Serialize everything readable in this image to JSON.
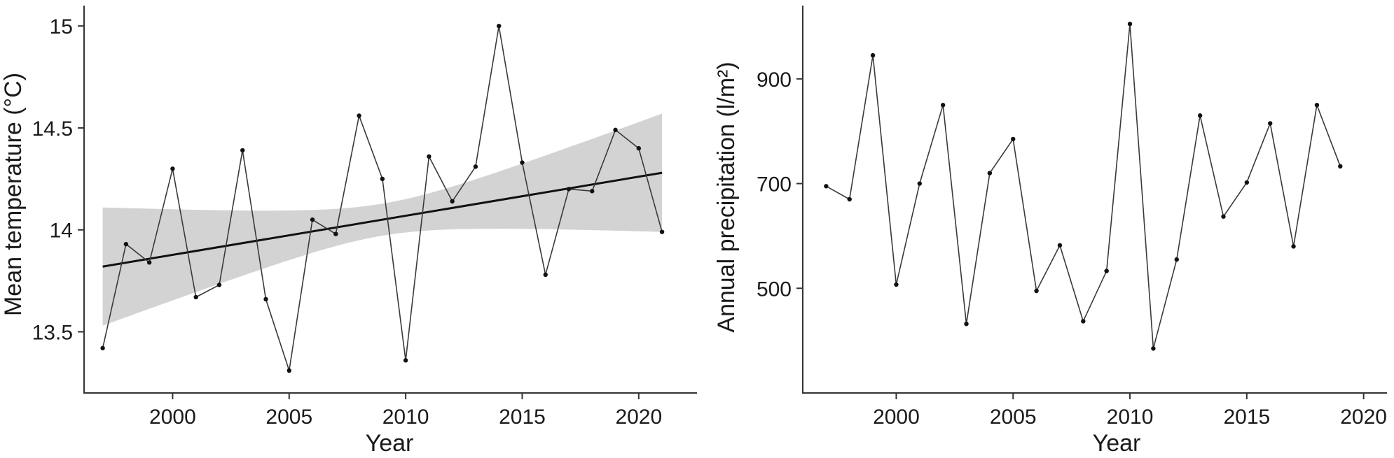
{
  "chart_data": [
    {
      "type": "line",
      "xlabel": "Year",
      "ylabel": "Mean temperature (°C)",
      "xlim": [
        1996.2,
        2022.5
      ],
      "ylim": [
        13.2,
        15.1
      ],
      "xticks": [
        2000,
        2005,
        2010,
        2015,
        2020
      ],
      "yticks": [
        13.5,
        14,
        14.5,
        15
      ],
      "ytick_labels": [
        "13.5",
        "14",
        "14.5",
        "15"
      ],
      "series": [
        {
          "x": [
            1997,
            1998,
            1999,
            2000,
            2001,
            2002,
            2003,
            2004,
            2005,
            2006,
            2007,
            2008,
            2009,
            2010,
            2011,
            2012,
            2013,
            2014,
            2015,
            2016,
            2017,
            2018,
            2019,
            2020,
            2021
          ],
          "y": [
            13.42,
            13.93,
            13.84,
            14.3,
            13.67,
            13.73,
            14.39,
            13.66,
            13.31,
            14.05,
            13.98,
            14.56,
            14.25,
            13.36,
            14.36,
            14.14,
            14.31,
            15.0,
            14.33,
            13.78,
            14.2,
            14.19,
            14.49,
            14.4,
            13.99
          ]
        }
      ],
      "trend": {
        "x": [
          1997,
          2021
        ],
        "y": [
          13.82,
          14.28
        ],
        "ci_lower": [
          13.53,
          13.99
        ],
        "ci_upper": [
          14.11,
          14.57
        ]
      },
      "grid": false,
      "legend": "none"
    },
    {
      "type": "line",
      "xlabel": "Year",
      "ylabel": "Annual precipitation (l/m²)",
      "xlim": [
        1996.0,
        2021.0
      ],
      "ylim": [
        300,
        1040
      ],
      "xticks": [
        2000,
        2005,
        2010,
        2015,
        2020
      ],
      "yticks": [
        500,
        700,
        900
      ],
      "ytick_labels": [
        "500",
        "700",
        "900"
      ],
      "series": [
        {
          "x": [
            1997,
            1998,
            1999,
            2000,
            2001,
            2002,
            2003,
            2004,
            2005,
            2006,
            2007,
            2008,
            2009,
            2010,
            2011,
            2012,
            2013,
            2014,
            2015,
            2016,
            2017,
            2018,
            2019
          ],
          "y": [
            695,
            670,
            945,
            507,
            700,
            850,
            432,
            720,
            785,
            495,
            582,
            437,
            533,
            1005,
            385,
            555,
            830,
            637,
            702,
            815,
            580,
            850,
            733
          ]
        }
      ],
      "grid": false,
      "legend": "none"
    }
  ]
}
